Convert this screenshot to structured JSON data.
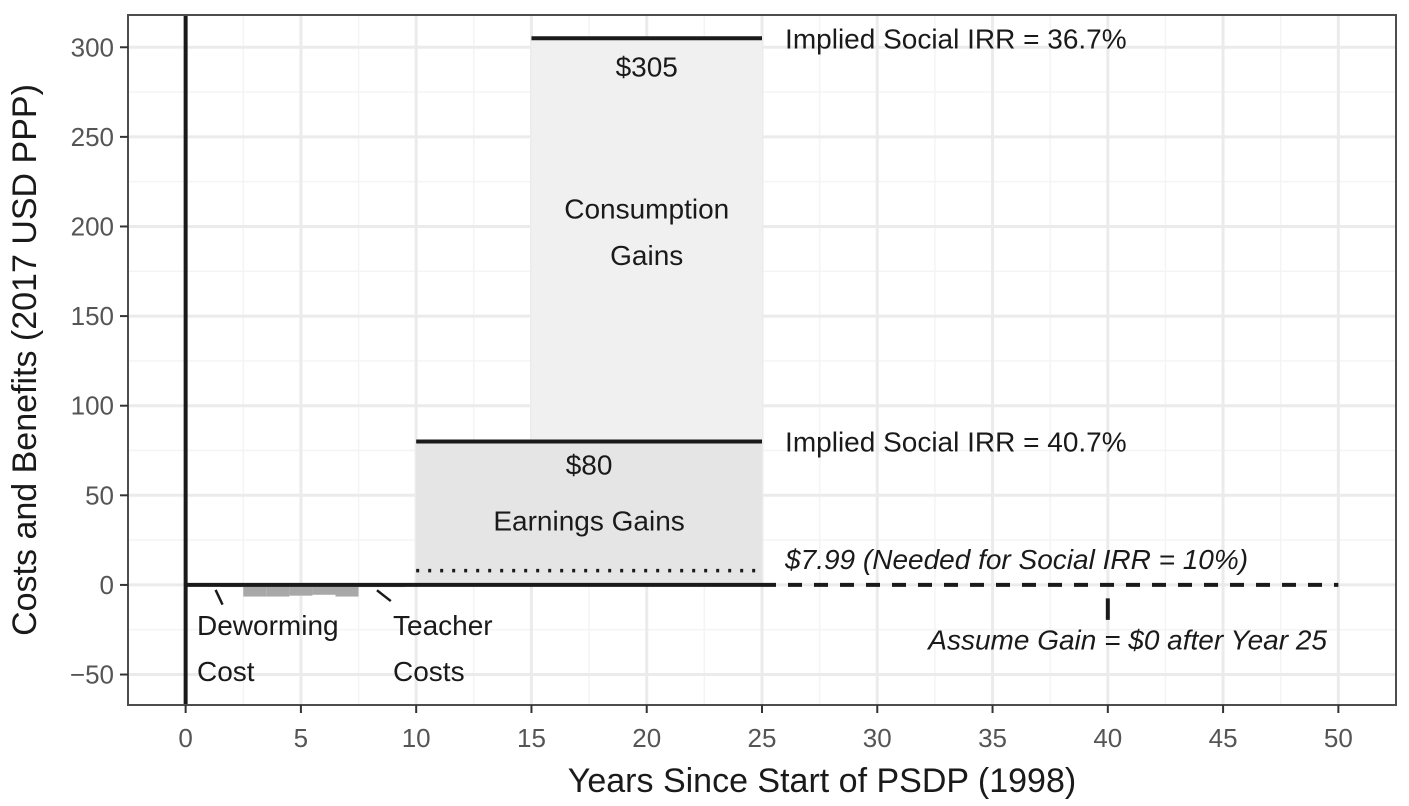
{
  "chart_data": {
    "type": "bar",
    "xlabel": "Years Since Start of PSDP (1998)",
    "ylabel": "Costs and Benefits (2017 USD PPP)",
    "xlim": [
      -2.5,
      52.5
    ],
    "ylim": [
      -67,
      318
    ],
    "x_ticks": [
      0,
      5,
      10,
      15,
      20,
      25,
      30,
      35,
      40,
      45,
      50
    ],
    "y_ticks": [
      -50,
      0,
      50,
      100,
      150,
      200,
      250,
      300
    ],
    "x_tick_labels": [
      "0",
      "5",
      "10",
      "15",
      "20",
      "25",
      "30",
      "35",
      "40",
      "45",
      "50"
    ],
    "y_tick_labels": [
      "−50",
      "0",
      "50",
      "100",
      "150",
      "200",
      "250",
      "300"
    ],
    "grid": true,
    "colors": {
      "panel_border": "#4d4d4d",
      "grid_major": "#ebebeb",
      "grid_minor": "#f4f4f4",
      "consumption_fill": "#f0f0f0",
      "earnings_fill": "#e4e5e4",
      "cost_fill": "#a8a8a8",
      "line": "#1a1a1a"
    },
    "series": [
      {
        "name": "Consumption Gains",
        "x_start": 15,
        "x_end": 25,
        "value": 305,
        "value_label": "$305",
        "label_lines": [
          "Consumption",
          "Gains"
        ],
        "irr_label": "Implied Social IRR = 36.7%"
      },
      {
        "name": "Earnings Gains",
        "x_start": 10,
        "x_end": 25,
        "value": 80,
        "value_label": "$80",
        "label_lines": [
          "Earnings Gains"
        ],
        "irr_label": "Implied Social IRR = 40.7%"
      }
    ],
    "costs": [
      {
        "x": 2,
        "value": -1.2
      },
      {
        "x": 3,
        "value": -6.5
      },
      {
        "x": 4,
        "value": -6.5
      },
      {
        "x": 5,
        "value": -6.0
      },
      {
        "x": 6,
        "value": -5.5
      },
      {
        "x": 7,
        "value": -6.5
      },
      {
        "x": 8,
        "value": -1.2
      },
      {
        "x": 9,
        "value": -1.2
      }
    ],
    "threshold": {
      "value": 7.99,
      "x_start": 10,
      "x_end": 25,
      "label": "$7.99 (Needed for Social IRR = 10%)"
    },
    "zero_line": {
      "solid_to": 25,
      "dashed_to": 50
    },
    "annotations": {
      "deworming": [
        "Deworming",
        "Cost"
      ],
      "teacher": [
        "Teacher",
        "Costs"
      ],
      "assume_gain": "Assume Gain = $0 after Year 25",
      "assume_gain_marker_x": 40
    }
  }
}
